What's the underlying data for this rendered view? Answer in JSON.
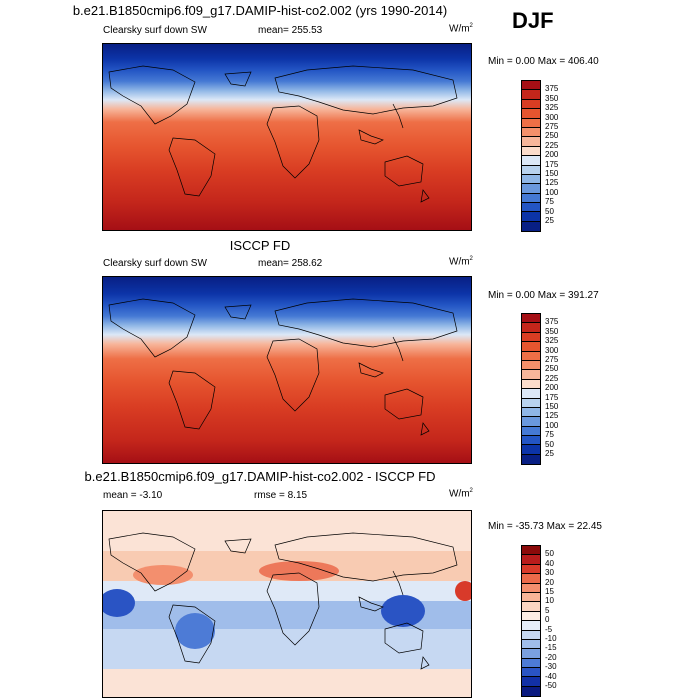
{
  "season": "DJF",
  "panels": [
    {
      "title": "b.e21.B1850cmip6.f09_g17.DAMIP-hist-co2.002 (yrs 1990-2014)",
      "left_label": "Clearsky surf down SW",
      "mid_label": "mean= 255.53",
      "units": "W/m",
      "units_sup": "2",
      "minmax": "Min =   0.00 Max = 406.40",
      "levels": [
        "375",
        "350",
        "325",
        "300",
        "275",
        "250",
        "225",
        "200",
        "175",
        "150",
        "125",
        "100",
        "75",
        "50",
        "25"
      ],
      "colors": [
        "#a50f15",
        "#c4261b",
        "#d93d23",
        "#e6552f",
        "#ee6f46",
        "#f4906b",
        "#f7b69b",
        "#fbdccb",
        "#dce8f7",
        "#b8d2ee",
        "#8fb6e6",
        "#6a98dd",
        "#4579d4",
        "#2355c4",
        "#0c34a8",
        "#081f84"
      ]
    },
    {
      "title": "ISCCP FD",
      "left_label": "Clearsky surf down SW",
      "mid_label": "mean= 258.62",
      "units": "W/m",
      "units_sup": "2",
      "minmax": "Min =   0.00 Max = 391.27",
      "levels": [
        "375",
        "350",
        "325",
        "300",
        "275",
        "250",
        "225",
        "200",
        "175",
        "150",
        "125",
        "100",
        "75",
        "50",
        "25"
      ],
      "colors": [
        "#a50f15",
        "#c4261b",
        "#d93d23",
        "#e6552f",
        "#ee6f46",
        "#f4906b",
        "#f7b69b",
        "#fbdccb",
        "#dce8f7",
        "#b8d2ee",
        "#8fb6e6",
        "#6a98dd",
        "#4579d4",
        "#2355c4",
        "#0c34a8",
        "#081f84"
      ]
    },
    {
      "title": "b.e21.B1850cmip6.f09_g17.DAMIP-hist-co2.002 - ISCCP FD",
      "left_label": "mean =  -3.10",
      "mid_label": "rmse =   8.15",
      "units": "W/m",
      "units_sup": "2",
      "minmax": "Min = -35.73 Max =  22.45",
      "levels": [
        "50",
        "40",
        "30",
        "20",
        "15",
        "10",
        "5",
        "0",
        "-5",
        "-10",
        "-15",
        "-20",
        "-30",
        "-40",
        "-50"
      ],
      "colors": [
        "#8b0a0a",
        "#b81c1c",
        "#d83a2a",
        "#eb6a4a",
        "#f38f6e",
        "#f8b597",
        "#fbd6c2",
        "#fdeee4",
        "#e6eefa",
        "#c6d8f2",
        "#a0bdea",
        "#7aa0e0",
        "#4d7bd6",
        "#2a54c4",
        "#1230a6",
        "#0a1a80"
      ]
    }
  ]
}
